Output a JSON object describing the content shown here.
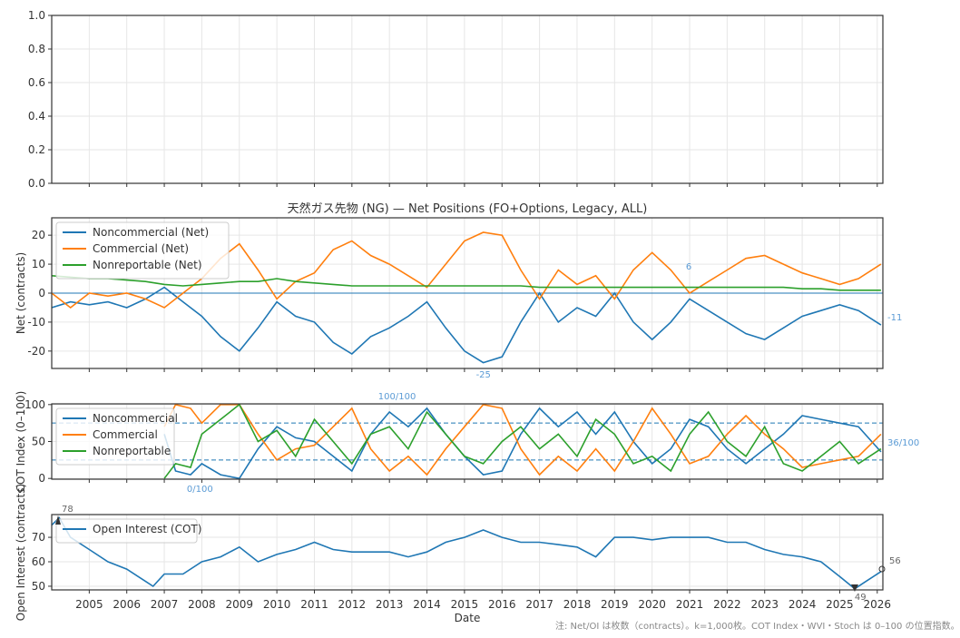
{
  "chart_data": [
    {
      "type": "line",
      "panel": "top",
      "ylim": [
        0,
        1
      ],
      "yticks": [
        "0.0",
        "0.2",
        "0.4",
        "0.6",
        "0.8",
        "1.0"
      ],
      "series": []
    },
    {
      "type": "line",
      "panel": "net",
      "title": "天然ガス先物 (NG) — Net Positions (FO+Options, Legacy, ALL)",
      "ylabel": "Net (contracts)",
      "ylim": [
        -26,
        26
      ],
      "yticks": [
        "-20",
        "-10",
        "0",
        "10",
        "20"
      ],
      "grid": true,
      "legend": "upper-left",
      "x": [
        2004,
        2004.5,
        2005,
        2005.5,
        2006,
        2006.5,
        2007,
        2007.5,
        2008,
        2008.5,
        2009,
        2009.5,
        2010,
        2010.5,
        2011,
        2011.5,
        2012,
        2012.5,
        2013,
        2013.5,
        2014,
        2014.5,
        2015,
        2015.5,
        2016,
        2016.5,
        2017,
        2017.5,
        2018,
        2018.5,
        2019,
        2019.5,
        2020,
        2020.5,
        2021,
        2021.5,
        2022,
        2022.5,
        2023,
        2023.5,
        2024,
        2024.5,
        2025,
        2025.5,
        2026.1
      ],
      "series": [
        {
          "name": "Noncommercial (Net)",
          "color": "#1f77b4",
          "values": [
            -5,
            -3,
            -4,
            -3,
            -5,
            -2,
            2,
            -3,
            -8,
            -15,
            -20,
            -12,
            -3,
            -8,
            -10,
            -17,
            -21,
            -15,
            -12,
            -8,
            -3,
            -12,
            -20,
            -24,
            -22,
            -10,
            0,
            -10,
            -5,
            -8,
            0,
            -10,
            -16,
            -10,
            -2,
            -6,
            -10,
            -14,
            -16,
            -12,
            -8,
            -6,
            -4,
            -6,
            -11
          ]
        },
        {
          "name": "Commercial (Net)",
          "color": "#ff7f0e",
          "values": [
            0,
            -5,
            0,
            -1,
            0,
            -2,
            -5,
            0,
            5,
            12,
            17,
            8,
            -2,
            4,
            7,
            15,
            18,
            13,
            10,
            6,
            2,
            10,
            18,
            21,
            20,
            8,
            -2,
            8,
            3,
            6,
            -2,
            8,
            14,
            8,
            0,
            4,
            8,
            12,
            13,
            10,
            7,
            5,
            3,
            5,
            10
          ]
        },
        {
          "name": "Nonreportable (Net)",
          "color": "#2ca02c",
          "values": [
            6,
            5.5,
            5,
            5,
            4.5,
            4,
            3,
            2.5,
            3,
            3.5,
            4,
            4,
            5,
            4,
            3.5,
            3,
            2.5,
            2.5,
            2.5,
            2.5,
            2.5,
            2.5,
            2.5,
            2.5,
            2.5,
            2.5,
            2,
            2,
            2,
            2,
            2,
            2,
            2,
            2,
            2,
            2,
            2,
            2,
            2,
            2,
            1.5,
            1.5,
            1,
            1,
            1
          ]
        }
      ],
      "annotations": {
        "max": "6",
        "min": "-25",
        "last": "-11"
      }
    },
    {
      "type": "line",
      "panel": "cot_index",
      "ylabel": "COT Index (0–100)",
      "ylim": [
        -1,
        101
      ],
      "yticks": [
        "0",
        "50",
        "100"
      ],
      "reference_lines": [
        25,
        75
      ],
      "legend": "upper-left",
      "x": [
        2007,
        2007.3,
        2007.7,
        2008,
        2008.5,
        2009,
        2009.5,
        2010,
        2010.5,
        2011,
        2011.5,
        2012,
        2012.5,
        2013,
        2013.5,
        2014,
        2014.5,
        2015,
        2015.5,
        2016,
        2016.5,
        2017,
        2017.5,
        2018,
        2018.5,
        2019,
        2019.5,
        2020,
        2020.5,
        2021,
        2021.5,
        2022,
        2022.5,
        2023,
        2023.5,
        2024,
        2024.5,
        2025,
        2025.5,
        2026.1
      ],
      "series": [
        {
          "name": "Noncommercial",
          "color": "#1f77b4",
          "values": [
            60,
            10,
            5,
            20,
            5,
            0,
            40,
            70,
            55,
            50,
            30,
            10,
            60,
            90,
            70,
            95,
            60,
            30,
            5,
            10,
            60,
            95,
            70,
            90,
            60,
            90,
            50,
            20,
            40,
            80,
            70,
            40,
            20,
            40,
            60,
            85,
            80,
            75,
            70,
            36
          ]
        },
        {
          "name": "Commercial",
          "color": "#ff7f0e",
          "values": [
            70,
            100,
            95,
            75,
            100,
            100,
            60,
            25,
            40,
            45,
            70,
            95,
            40,
            10,
            30,
            5,
            40,
            70,
            100,
            95,
            40,
            5,
            30,
            10,
            40,
            10,
            50,
            95,
            60,
            20,
            30,
            60,
            85,
            60,
            40,
            15,
            20,
            25,
            30,
            60
          ]
        },
        {
          "name": "Nonreportable",
          "color": "#2ca02c",
          "values": [
            0,
            20,
            15,
            60,
            80,
            100,
            50,
            65,
            30,
            80,
            50,
            20,
            60,
            70,
            40,
            90,
            60,
            30,
            20,
            50,
            70,
            40,
            60,
            30,
            80,
            60,
            20,
            30,
            10,
            60,
            90,
            50,
            30,
            70,
            20,
            10,
            30,
            50,
            20,
            40
          ]
        }
      ],
      "annotations": {
        "max": "100/100",
        "min": "0/100",
        "last": "36/100"
      }
    },
    {
      "type": "line",
      "panel": "open_interest",
      "ylabel": "Open Interest (contracts)",
      "xlabel": "Date",
      "ylim": [
        48.5,
        79.3
      ],
      "yticks": [
        "50",
        "60",
        "70"
      ],
      "legend": "upper-left",
      "xticks": [
        "2005",
        "2006",
        "2007",
        "2008",
        "2009",
        "2010",
        "2011",
        "2012",
        "2013",
        "2014",
        "2015",
        "2016",
        "2017",
        "2018",
        "2019",
        "2020",
        "2021",
        "2022",
        "2023",
        "2024",
        "2025",
        "2026"
      ],
      "x": [
        2004,
        2004.2,
        2004.5,
        2005,
        2005.5,
        2006,
        2006.5,
        2006.7,
        2007,
        2007.5,
        2008,
        2008.5,
        2009,
        2009.5,
        2010,
        2010.5,
        2011,
        2011.5,
        2012,
        2012.5,
        2013,
        2013.5,
        2014,
        2014.5,
        2015,
        2015.5,
        2016,
        2016.5,
        2017,
        2017.5,
        2018,
        2018.5,
        2019,
        2019.5,
        2020,
        2020.5,
        2021,
        2021.5,
        2022,
        2022.5,
        2023,
        2023.5,
        2024,
        2024.5,
        2025,
        2025.4,
        2025.7,
        2026.1
      ],
      "series": [
        {
          "name": "Open Interest (COT)",
          "color": "#1f77b4",
          "values": [
            75,
            78,
            70,
            65,
            60,
            57,
            52,
            50,
            55,
            55,
            60,
            62,
            66,
            60,
            63,
            65,
            68,
            65,
            64,
            64,
            64,
            62,
            64,
            68,
            70,
            73,
            70,
            68,
            68,
            67,
            66,
            62,
            70,
            70,
            69,
            70,
            70,
            70,
            68,
            68,
            65,
            63,
            62,
            60,
            54,
            49,
            52,
            56
          ]
        }
      ],
      "annotations": {
        "max": "78",
        "min": "49",
        "last": "56"
      }
    }
  ],
  "footnote": "注: Net/OI は枚数（contracts）。k=1,000枚。COT Index・WVI・Stoch は 0–100 の位置指数。"
}
